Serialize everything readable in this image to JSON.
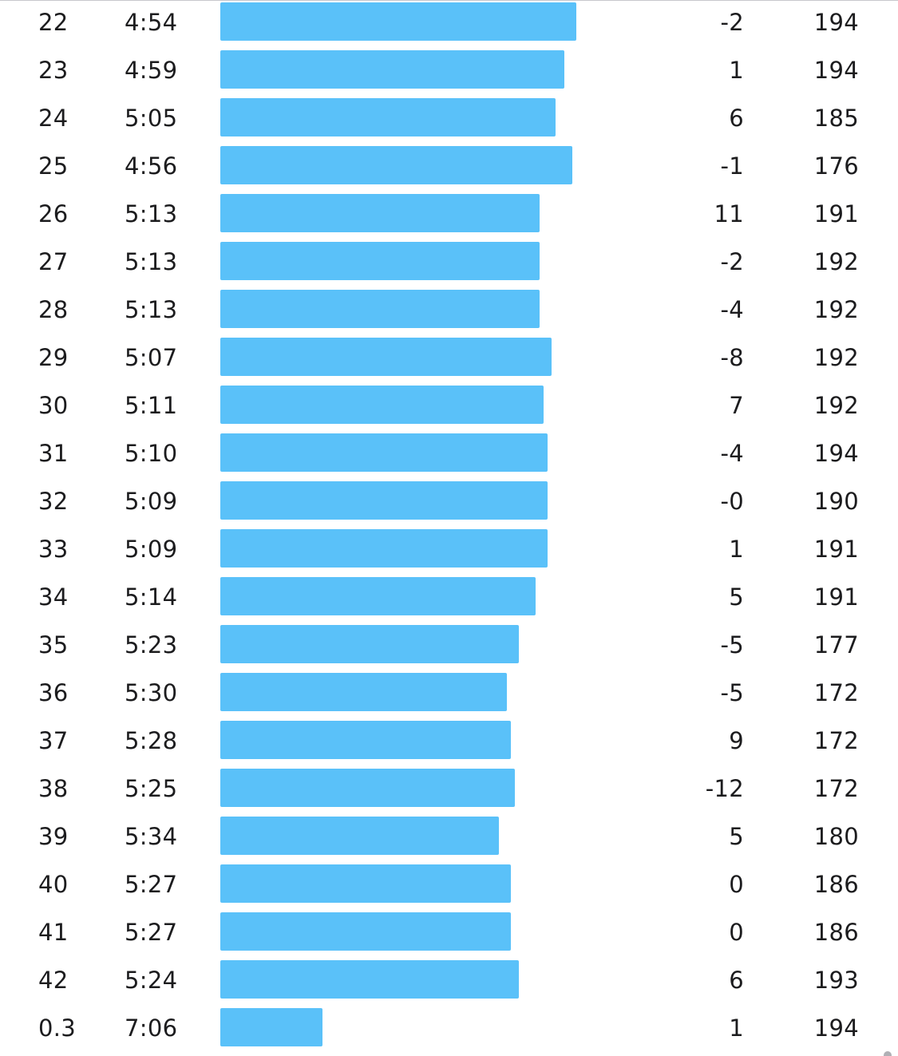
{
  "splits": [
    {
      "km": "22",
      "pace": "4:54",
      "elevation": "-2",
      "heart_rate": "194",
      "speed_fraction": 1.0
    },
    {
      "km": "23",
      "pace": "4:59",
      "elevation": "1",
      "heart_rate": "194",
      "speed_fraction": 0.966
    },
    {
      "km": "24",
      "pace": "5:05",
      "elevation": "6",
      "heart_rate": "185",
      "speed_fraction": 0.942
    },
    {
      "km": "25",
      "pace": "4:56",
      "elevation": "-1",
      "heart_rate": "176",
      "speed_fraction": 0.989
    },
    {
      "km": "26",
      "pace": "5:13",
      "elevation": "11",
      "heart_rate": "191",
      "speed_fraction": 0.897
    },
    {
      "km": "27",
      "pace": "5:13",
      "elevation": "-2",
      "heart_rate": "192",
      "speed_fraction": 0.897
    },
    {
      "km": "28",
      "pace": "5:13",
      "elevation": "-4",
      "heart_rate": "192",
      "speed_fraction": 0.897
    },
    {
      "km": "29",
      "pace": "5:07",
      "elevation": "-8",
      "heart_rate": "192",
      "speed_fraction": 0.931
    },
    {
      "km": "30",
      "pace": "5:11",
      "elevation": "7",
      "heart_rate": "192",
      "speed_fraction": 0.908
    },
    {
      "km": "31",
      "pace": "5:10",
      "elevation": "-4",
      "heart_rate": "194",
      "speed_fraction": 0.919
    },
    {
      "km": "32",
      "pace": "5:09",
      "elevation": "-0",
      "heart_rate": "190",
      "speed_fraction": 0.919
    },
    {
      "km": "33",
      "pace": "5:09",
      "elevation": "1",
      "heart_rate": "191",
      "speed_fraction": 0.919
    },
    {
      "km": "34",
      "pace": "5:14",
      "elevation": "5",
      "heart_rate": "191",
      "speed_fraction": 0.886
    },
    {
      "km": "35",
      "pace": "5:23",
      "elevation": "-5",
      "heart_rate": "177",
      "speed_fraction": 0.839
    },
    {
      "km": "36",
      "pace": "5:30",
      "elevation": "-5",
      "heart_rate": "172",
      "speed_fraction": 0.805
    },
    {
      "km": "37",
      "pace": "5:28",
      "elevation": "9",
      "heart_rate": "172",
      "speed_fraction": 0.816
    },
    {
      "km": "38",
      "pace": "5:25",
      "elevation": "-12",
      "heart_rate": "172",
      "speed_fraction": 0.827
    },
    {
      "km": "39",
      "pace": "5:34",
      "elevation": "5",
      "heart_rate": "180",
      "speed_fraction": 0.782
    },
    {
      "km": "40",
      "pace": "5:27",
      "elevation": "0",
      "heart_rate": "186",
      "speed_fraction": 0.816
    },
    {
      "km": "41",
      "pace": "5:27",
      "elevation": "0",
      "heart_rate": "186",
      "speed_fraction": 0.816
    },
    {
      "km": "42",
      "pace": "5:24",
      "elevation": "6",
      "heart_rate": "193",
      "speed_fraction": 0.839
    },
    {
      "km": "0.3",
      "pace": "7:06",
      "elevation": "1",
      "heart_rate": "194",
      "speed_fraction": 0.287
    }
  ],
  "colors": {
    "bar": "#5ac1f9",
    "text": "#1c1c1e"
  }
}
